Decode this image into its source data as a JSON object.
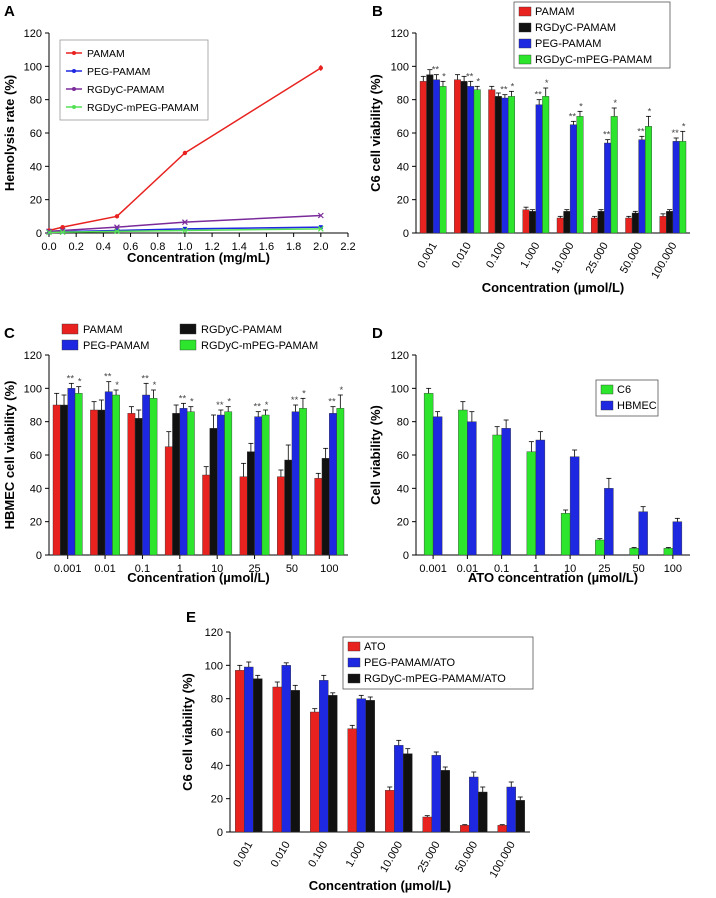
{
  "panels": [
    {
      "letter": "A"
    },
    {
      "letter": "B"
    },
    {
      "letter": "C"
    },
    {
      "letter": "D"
    },
    {
      "letter": "E"
    }
  ],
  "colors": {
    "pamam": "#e8221f",
    "peg": "#1d28e0",
    "rgdyc": "#111111",
    "rgdyc_mpeg": "#2de52d",
    "rgdyc_line": "#7a2a9a",
    "mpeg_line": "#55e055"
  },
  "chart_data": [
    {
      "id": "A",
      "type": "line",
      "title": "",
      "xlabel": "Concentration (mg/mL)",
      "ylabel": "Hemolysis rate (%)",
      "xlim": [
        0,
        2.2
      ],
      "ylim": [
        0,
        120
      ],
      "xticks": [
        "0.0",
        "0.2",
        "0.4",
        "0.6",
        "0.8",
        "1.0",
        "1.2",
        "1.4",
        "1.6",
        "1.8",
        "2.0",
        "2.2"
      ],
      "yticks": [
        "0",
        "20",
        "40",
        "60",
        "80",
        "100",
        "120"
      ],
      "legend": "upper-left",
      "series": [
        {
          "name": "PAMAM",
          "color": "#e8221f",
          "marker": "circle",
          "x": [
            0.0,
            0.1,
            0.5,
            1.0,
            2.0
          ],
          "y": [
            1.5,
            3.5,
            10,
            48,
            99
          ],
          "err": [
            0.3,
            0.4,
            0.6,
            1.2,
            1.8
          ]
        },
        {
          "name": "PEG-PAMAM",
          "color": "#1d28e0",
          "marker": "square",
          "x": [
            0.0,
            0.1,
            0.5,
            1.0,
            2.0
          ],
          "y": [
            0.5,
            0.8,
            1.5,
            2.5,
            3.5
          ],
          "err": [
            0.2,
            0.2,
            0.2,
            0.3,
            0.3
          ]
        },
        {
          "name": "RGDyC-PAMAM",
          "color": "#7a2a9a",
          "marker": "cross",
          "x": [
            0.0,
            0.1,
            0.5,
            1.0,
            2.0
          ],
          "y": [
            1,
            1.5,
            3.5,
            6.5,
            10.5
          ],
          "err": [
            0.2,
            0.2,
            0.3,
            0.4,
            0.5
          ]
        },
        {
          "name": "RGDyC-mPEG-PAMAM",
          "color": "#55e055",
          "marker": "cross",
          "x": [
            0.0,
            0.1,
            0.5,
            1.0,
            2.0
          ],
          "y": [
            0.3,
            0.5,
            1,
            1.5,
            2.5
          ],
          "err": [
            0.1,
            0.1,
            0.1,
            0.2,
            0.2
          ]
        }
      ]
    },
    {
      "id": "B",
      "type": "bar",
      "title": "",
      "xlabel": "Concentration (µmol/L)",
      "ylabel": "C6 cell viability (%)",
      "ylim": [
        0,
        120
      ],
      "yticks": [
        "0",
        "20",
        "40",
        "60",
        "80",
        "100",
        "120"
      ],
      "categories": [
        "0.001",
        "0.010",
        "0.100",
        "1.000",
        "10.000",
        "25.000",
        "50.000",
        "100.000"
      ],
      "rotate_ticks": true,
      "legend": "top-right",
      "series": [
        {
          "name": "PAMAM",
          "color": "#e8221f",
          "values": [
            91,
            92,
            86,
            14,
            9,
            9,
            9,
            10
          ],
          "err": [
            3,
            3,
            2,
            1.5,
            1,
            1,
            1,
            1.5
          ],
          "annot": [
            "",
            "",
            "",
            "",
            "",
            "",
            "",
            ""
          ]
        },
        {
          "name": "RGDyC-PAMAM",
          "color": "#111111",
          "values": [
            95,
            91,
            82,
            13,
            13,
            13,
            12,
            13
          ],
          "err": [
            3,
            3,
            2,
            1,
            1,
            1,
            1,
            1
          ],
          "annot": [
            "",
            "",
            "",
            "",
            "",
            "",
            "",
            ""
          ]
        },
        {
          "name": "PEG-PAMAM",
          "color": "#1d28e0",
          "values": [
            92,
            88,
            81,
            77,
            65,
            54,
            56,
            55
          ],
          "err": [
            3,
            3,
            2,
            3,
            2,
            2,
            2,
            2
          ],
          "annot": [
            "**",
            "**",
            "**",
            "**",
            "**",
            "**",
            "**",
            "**"
          ]
        },
        {
          "name": "RGDyC-mPEG-PAMAM",
          "color": "#2de52d",
          "values": [
            88,
            86,
            82,
            82,
            70,
            70,
            64,
            55
          ],
          "err": [
            3,
            2,
            3,
            5,
            3,
            5,
            6,
            6
          ],
          "annot": [
            "*",
            "*",
            "*",
            "*",
            "*",
            "*",
            "*",
            "*"
          ]
        }
      ]
    },
    {
      "id": "C",
      "type": "bar",
      "title": "",
      "xlabel": "Concentration (µmol/L)",
      "ylabel": "HBMEC cell viability (%)",
      "ylim": [
        0,
        120
      ],
      "yticks": [
        "0",
        "20",
        "40",
        "60",
        "80",
        "100",
        "120"
      ],
      "categories": [
        "0.001",
        "0.01",
        "0.1",
        "1",
        "10",
        "25",
        "50",
        "100"
      ],
      "rotate_ticks": false,
      "legend": "top",
      "series": [
        {
          "name": "PAMAM",
          "color": "#e8221f",
          "values": [
            90,
            87,
            85,
            65,
            48,
            47,
            47,
            46
          ],
          "err": [
            7,
            5,
            4,
            9,
            5,
            8,
            4,
            3
          ],
          "annot": [
            "",
            "",
            "",
            "",
            "",
            "",
            "",
            ""
          ]
        },
        {
          "name": "RGDyC-PAMAM",
          "color": "#111111",
          "values": [
            90,
            87,
            82,
            85,
            76,
            62,
            57,
            58
          ],
          "err": [
            6,
            6,
            5,
            5,
            8,
            5,
            9,
            6
          ],
          "annot": [
            "",
            "",
            "",
            "",
            "",
            "",
            "",
            ""
          ]
        },
        {
          "name": "PEG-PAMAM",
          "color": "#1d28e0",
          "values": [
            100,
            98,
            96,
            88,
            84,
            83,
            86,
            85
          ],
          "err": [
            3,
            6,
            7,
            3,
            3,
            3,
            4,
            4
          ],
          "annot": [
            "**",
            "**",
            "**",
            "**",
            "**",
            "**",
            "**",
            "**"
          ]
        },
        {
          "name": "RGDyC-mPEG-PAMAM",
          "color": "#2de52d",
          "values": [
            97,
            96,
            94,
            86,
            86,
            84,
            88,
            88
          ],
          "err": [
            4,
            3,
            5,
            3,
            3,
            3,
            6,
            8
          ],
          "annot": [
            "*",
            "*",
            "*",
            "*",
            "*",
            "*",
            "*",
            "*"
          ]
        }
      ]
    },
    {
      "id": "D",
      "type": "bar",
      "title": "",
      "xlabel": "ATO concentration (µmol/L)",
      "ylabel": "Cell viability (%)",
      "ylim": [
        0,
        120
      ],
      "yticks": [
        "0",
        "20",
        "40",
        "60",
        "80",
        "100",
        "120"
      ],
      "categories": [
        "0.001",
        "0.01",
        "0.1",
        "1",
        "10",
        "25",
        "50",
        "100"
      ],
      "rotate_ticks": false,
      "legend": "top-right",
      "series": [
        {
          "name": "C6",
          "color": "#2de52d",
          "values": [
            97,
            87,
            72,
            62,
            25,
            9,
            4,
            4
          ],
          "err": [
            3,
            5,
            5,
            6,
            2,
            0.8,
            0.5,
            0.5
          ],
          "annot": [
            "",
            "",
            "",
            "",
            "",
            "",
            "",
            ""
          ]
        },
        {
          "name": "HBMEC",
          "color": "#1d28e0",
          "values": [
            83,
            80,
            76,
            69,
            59,
            40,
            26,
            20
          ],
          "err": [
            3,
            6,
            5,
            5,
            4,
            6,
            3,
            2
          ],
          "annot": [
            "",
            "",
            "",
            "",
            "",
            "",
            "",
            ""
          ]
        }
      ]
    },
    {
      "id": "E",
      "type": "bar",
      "title": "",
      "xlabel": "Concentration (µmol/L)",
      "ylabel": "C6 cell viability (%)",
      "ylim": [
        0,
        120
      ],
      "yticks": [
        "0",
        "20",
        "40",
        "60",
        "80",
        "100",
        "120"
      ],
      "categories": [
        "0.001",
        "0.010",
        "0.100",
        "1.000",
        "10.000",
        "25.000",
        "50.000",
        "100.000"
      ],
      "rotate_ticks": true,
      "legend": "top-right",
      "series": [
        {
          "name": "ATO",
          "color": "#e8221f",
          "values": [
            97,
            87,
            72,
            62,
            25,
            9,
            4,
            4
          ],
          "err": [
            3,
            3,
            2,
            2,
            2,
            0.8,
            0.4,
            0.4
          ],
          "annot": [
            "",
            "",
            "",
            "",
            "",
            "",
            "",
            ""
          ]
        },
        {
          "name": "PEG-PAMAM/ATO",
          "color": "#1d28e0",
          "values": [
            99,
            100,
            91,
            80,
            52,
            46,
            33,
            27
          ],
          "err": [
            3,
            1.5,
            3,
            2,
            3,
            2,
            3,
            3
          ],
          "annot": [
            "",
            "",
            "",
            "",
            "",
            "",
            "",
            ""
          ]
        },
        {
          "name": "RGDyC-mPEG-PAMAM/ATO",
          "color": "#111111",
          "values": [
            92,
            85,
            82,
            79,
            47,
            37,
            24,
            19
          ],
          "err": [
            2,
            3,
            1.5,
            2,
            3,
            2,
            3,
            2
          ],
          "annot": [
            "",
            "",
            "",
            "",
            "",
            "",
            "",
            ""
          ]
        }
      ]
    }
  ]
}
